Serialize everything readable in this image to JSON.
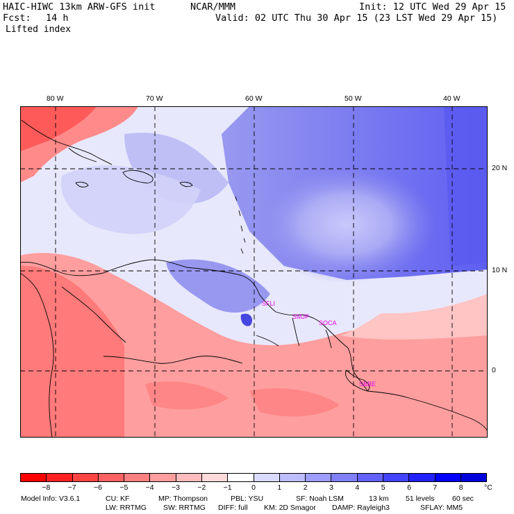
{
  "header": {
    "model": "HAIC-HIWC 13km ARW-GFS init",
    "org": "NCAR/MMM",
    "init": "Init: 12 UTC Wed 29 Apr 15",
    "fcst_label": "Fcst:",
    "fcst_value": "14 h",
    "valid": "Valid: 02 UTC Thu 30 Apr 15 (23 LST Wed 29 Apr 15)",
    "field": "Lifted index"
  },
  "map": {
    "lon_labels": [
      "80 W",
      "70 W",
      "60 W",
      "50 W",
      "40 W"
    ],
    "lat_labels": [
      "20 N",
      "10 N",
      "0"
    ],
    "stations": [
      "SFLI",
      "SMJP",
      "SOCA",
      "SBBE"
    ]
  },
  "colorbar": {
    "ticks": [
      "−8",
      "−7",
      "−6",
      "−5",
      "−4",
      "−3",
      "−2",
      "−1",
      "0",
      "1",
      "2",
      "3",
      "4",
      "5",
      "6",
      "7",
      "8"
    ],
    "unit": "°C",
    "colors": [
      "#ff0000",
      "#ff2222",
      "#ff4444",
      "#ff6262",
      "#ff8080",
      "#ff9e9e",
      "#ffbcbc",
      "#ffdada",
      "#ffffff",
      "#dadaff",
      "#bcbcff",
      "#9e9eff",
      "#8080ff",
      "#6262ff",
      "#4444ff",
      "#2222ff",
      "#0000ff",
      "#0000dd"
    ]
  },
  "footer": {
    "line1": [
      "Model Info: V3.6.1",
      "CU: KF",
      "MP: Thompson",
      "PBL: YSU",
      "SF: Noah LSM",
      "13 km",
      "51 levels",
      "60 sec"
    ],
    "line2": [
      "LW: RRTMG",
      "SW: RRTMG",
      "DIFF: full",
      "KM: 2D Smagor",
      "DAMP: Rayleigh3",
      "SFLAY: MM5"
    ]
  }
}
